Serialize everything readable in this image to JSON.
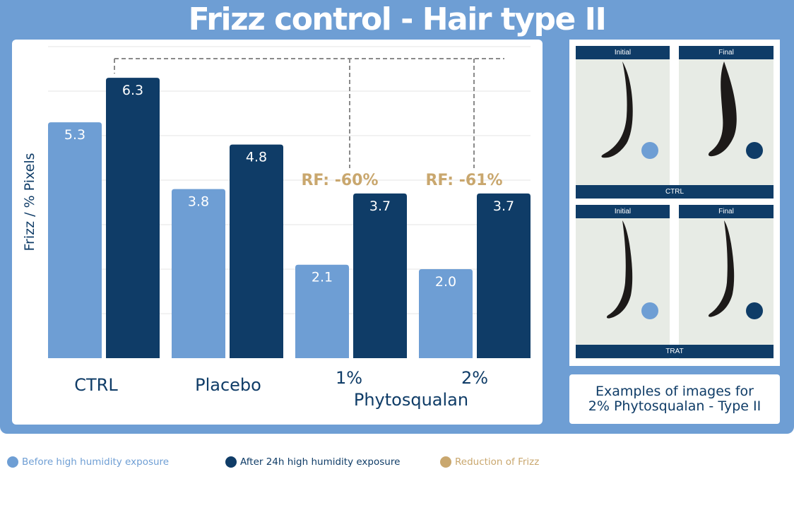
{
  "title": "Frizz control - Hair type II",
  "colors": {
    "banner": "#6e9ed4",
    "before": "#6e9ed4",
    "after": "#0f3c67",
    "reduction": "#c9a76e",
    "grid": "#e6e6e6"
  },
  "chart_data": {
    "type": "bar",
    "ylabel": "Frizz / % Pixels",
    "ylim": [
      0,
      7
    ],
    "grid": true,
    "categories": [
      "CTRL",
      "Placebo",
      "1%",
      "2%"
    ],
    "group_label": "Phytosqualan",
    "series": [
      {
        "name": "Before high humidity exposure",
        "values": [
          5.3,
          3.8,
          2.1,
          2.0
        ]
      },
      {
        "name": "After 24h high humidity exposure",
        "values": [
          6.3,
          4.8,
          3.7,
          3.7
        ]
      }
    ],
    "data_labels": {
      "before": [
        "5.3",
        "3.8",
        "2.1",
        "2.0"
      ],
      "after": [
        "6.3",
        "4.8",
        "3.7",
        "3.7"
      ]
    },
    "annotations": [
      {
        "category": "1%",
        "text": "RF: -60%"
      },
      {
        "category": "2%",
        "text": "RF: -61%"
      }
    ]
  },
  "images": {
    "ctrl": {
      "initial": "Initial",
      "final": "Final",
      "label": "CTRL"
    },
    "trat": {
      "initial": "Initial",
      "final": "Final",
      "label": "TRAT"
    }
  },
  "caption": {
    "line1": "Examples of images for",
    "line2": "2% Phytosqualan - Type II"
  },
  "legend": {
    "before": "Before high humidity exposure",
    "after": "After 24h high humidity exposure",
    "reduction": "Reduction of Frizz"
  }
}
